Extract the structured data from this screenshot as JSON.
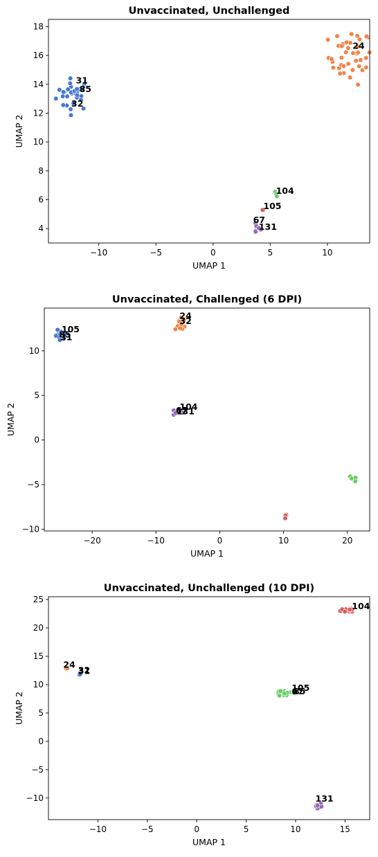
{
  "chart_data": [
    {
      "type": "scatter",
      "title": "Unvaccinated, Unchallenged",
      "xlabel": "UMAP 1",
      "ylabel": "UMAP 2",
      "xlim": [
        -14.4,
        13.7
      ],
      "ylim": [
        3.0,
        18.5
      ],
      "xticks": [
        -10,
        -5,
        0,
        5,
        10
      ],
      "yticks": [
        4,
        6,
        8,
        10,
        12,
        14,
        16,
        18
      ],
      "xtick_labels": [
        "−10",
        "−5",
        "0",
        "5",
        "10"
      ],
      "ytick_labels": [
        "4",
        "6",
        "8",
        "10",
        "12",
        "14",
        "16",
        "18"
      ],
      "grid": false,
      "legend": "none",
      "clusters": [
        {
          "color": "#4878d0",
          "center": [
            -12.2,
            13.3
          ],
          "spread": [
            0.75,
            0.55
          ],
          "count": 30
        },
        {
          "color": "#ee854a",
          "center": [
            12.0,
            15.9
          ],
          "spread": [
            0.95,
            0.95
          ],
          "count": 42
        },
        {
          "color": "#6acc64",
          "center": [
            5.5,
            6.35
          ],
          "spread": [
            0.1,
            0.08
          ],
          "count": 3
        },
        {
          "color": "#d65f5f",
          "center": [
            4.4,
            5.3
          ],
          "spread": [
            0.06,
            0.05
          ],
          "count": 2
        },
        {
          "color": "#956cb4",
          "center": [
            3.8,
            4.05
          ],
          "spread": [
            0.18,
            0.22
          ],
          "count": 8
        }
      ],
      "annotations": [
        {
          "text": "31",
          "x": -12.0,
          "y": 14.05
        },
        {
          "text": "85",
          "x": -11.7,
          "y": 13.45
        },
        {
          "text": "32",
          "x": -12.4,
          "y": 12.45
        },
        {
          "text": "24",
          "x": 12.2,
          "y": 16.45
        },
        {
          "text": "104",
          "x": 5.5,
          "y": 6.4
        },
        {
          "text": "105",
          "x": 4.4,
          "y": 5.35
        },
        {
          "text": "67",
          "x": 3.5,
          "y": 4.4
        },
        {
          "text": "131",
          "x": 4.0,
          "y": 3.9
        }
      ]
    },
    {
      "type": "scatter",
      "title": "Unvaccinated, Challenged (6 DPI)",
      "xlabel": "UMAP 1",
      "ylabel": "UMAP 2",
      "xlim": [
        -27.5,
        23.5
      ],
      "ylim": [
        -10.2,
        14.8
      ],
      "xticks": [
        -20,
        -10,
        0,
        10,
        20
      ],
      "yticks": [
        -10,
        -5,
        0,
        5,
        10
      ],
      "xtick_labels": [
        "−20",
        "−10",
        "0",
        "10",
        "20"
      ],
      "ytick_labels": [
        "−10",
        "−5",
        "0",
        "5",
        "10"
      ],
      "grid": false,
      "legend": "none",
      "clusters": [
        {
          "color": "#4878d0",
          "center": [
            -24.9,
            11.6
          ],
          "spread": [
            0.45,
            0.35
          ],
          "count": 14
        },
        {
          "color": "#ee854a",
          "center": [
            -6.1,
            13.1
          ],
          "spread": [
            0.45,
            0.45
          ],
          "count": 12
        },
        {
          "color": "#956cb4",
          "center": [
            -6.6,
            3.1
          ],
          "spread": [
            0.4,
            0.2
          ],
          "count": 8
        },
        {
          "color": "#6acc64",
          "center": [
            21.0,
            -4.4
          ],
          "spread": [
            0.25,
            0.3
          ],
          "count": 7
        },
        {
          "color": "#d65f5f",
          "center": [
            10.2,
            -8.6
          ],
          "spread": [
            0.15,
            0.15
          ],
          "count": 3
        }
      ],
      "annotations": [
        {
          "text": "105",
          "x": -24.8,
          "y": 12.1
        },
        {
          "text": "85",
          "x": -25.2,
          "y": 11.5
        },
        {
          "text": "31",
          "x": -25.0,
          "y": 11.2
        },
        {
          "text": "24",
          "x": -6.3,
          "y": 13.6
        },
        {
          "text": "32",
          "x": -6.3,
          "y": 13.0
        },
        {
          "text": "104",
          "x": -6.3,
          "y": 3.4
        },
        {
          "text": "67",
          "x": -6.9,
          "y": 3.0
        },
        {
          "text": "131",
          "x": -6.8,
          "y": 2.9
        }
      ]
    },
    {
      "type": "scatter",
      "title": "Unvaccinated, Unchallenged (10 DPI)",
      "xlabel": "UMAP 1",
      "ylabel": "UMAP 2",
      "xlim": [
        -15.0,
        17.5
      ],
      "ylim": [
        -13.8,
        25.5
      ],
      "xticks": [
        -10,
        -5,
        0,
        5,
        10,
        15
      ],
      "yticks": [
        -10,
        -5,
        0,
        5,
        10,
        15,
        20,
        25
      ],
      "xtick_labels": [
        "−10",
        "−5",
        "0",
        "5",
        "10",
        "15"
      ],
      "ytick_labels": [
        "−10",
        "−5",
        "0",
        "5",
        "10",
        "15",
        "20",
        "25"
      ],
      "grid": false,
      "legend": "none",
      "clusters": [
        {
          "color": "#ee854a",
          "center": [
            -13.3,
            12.9
          ],
          "spread": [
            0.2,
            0.08
          ],
          "count": 3
        },
        {
          "color": "#4878d0",
          "center": [
            -11.9,
            11.9
          ],
          "spread": [
            0.2,
            0.1
          ],
          "count": 4
        },
        {
          "color": "#6acc64",
          "center": [
            9.0,
            8.5
          ],
          "spread": [
            0.7,
            0.35
          ],
          "count": 18
        },
        {
          "color": "#d65f5f",
          "center": [
            15.5,
            23.2
          ],
          "spread": [
            0.45,
            0.25
          ],
          "count": 12
        },
        {
          "color": "#956cb4",
          "center": [
            12.2,
            -11.5
          ],
          "spread": [
            0.25,
            0.35
          ],
          "count": 9
        }
      ],
      "annotations": [
        {
          "text": "24",
          "x": -13.5,
          "y": 13.0
        },
        {
          "text": "32",
          "x": -12.0,
          "y": 12.0
        },
        {
          "text": "31",
          "x": -12.0,
          "y": 11.9
        },
        {
          "text": "105",
          "x": 9.6,
          "y": 8.9
        },
        {
          "text": "67",
          "x": 9.6,
          "y": 8.3
        },
        {
          "text": "85",
          "x": 9.8,
          "y": 8.3
        },
        {
          "text": "104",
          "x": 15.7,
          "y": 23.3
        },
        {
          "text": "131",
          "x": 12.0,
          "y": -10.6
        }
      ]
    }
  ]
}
